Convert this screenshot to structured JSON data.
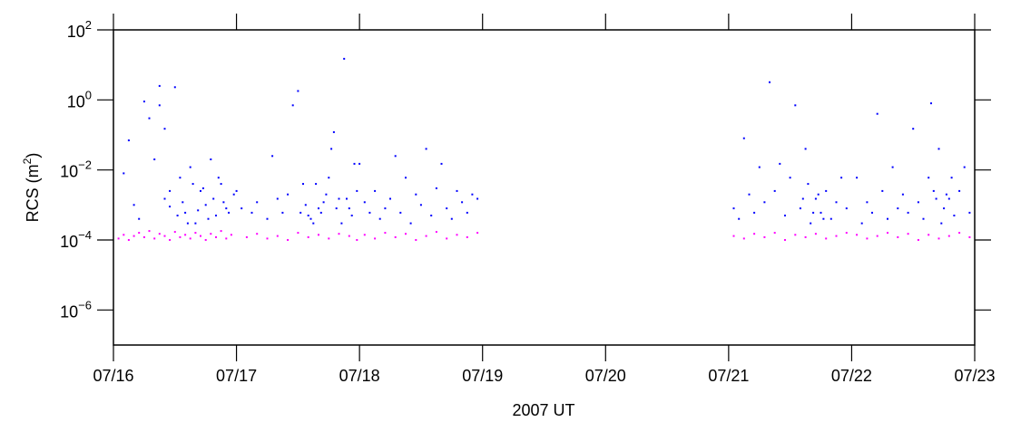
{
  "chart_data": {
    "type": "scatter",
    "title": "",
    "xlabel": "2007 UT",
    "ylabel": {
      "prefix": "RCS (m",
      "sup": "2",
      "suffix": ")"
    },
    "y_scale": "log",
    "ylim": [
      1e-07,
      100
    ],
    "xlim": [
      "07/16",
      "07/23"
    ],
    "x_ticks": [
      "07/16",
      "07/17",
      "07/18",
      "07/19",
      "07/20",
      "07/21",
      "07/22",
      "07/23"
    ],
    "y_ticks": [
      {
        "base": "10",
        "exp": "2"
      },
      {
        "base": "10",
        "exp": "0"
      },
      {
        "base": "10",
        "exp": "−2"
      },
      {
        "base": "10",
        "exp": "−4"
      },
      {
        "base": "10",
        "exp": "−6"
      }
    ],
    "grid": false,
    "colors": {
      "detections": "#0000ff",
      "detection_limit": "#ff00ff",
      "axes": "#000000"
    },
    "series": [
      {
        "key": "detections",
        "color": "#0000ff",
        "points": [
          [
            "07/16 02:00",
            0.008
          ],
          [
            "07/16 03:00",
            0.07
          ],
          [
            "07/16 04:00",
            0.001
          ],
          [
            "07/16 05:00",
            0.0004
          ],
          [
            "07/16 06:00",
            0.9
          ],
          [
            "07/16 07:00",
            0.3
          ],
          [
            "07/16 08:00",
            0.02
          ],
          [
            "07/16 09:00",
            2.5
          ],
          [
            "07/16 10:00",
            0.0015
          ],
          [
            "07/16 11:00",
            0.0009
          ],
          [
            "07/16 12:00",
            2.3
          ],
          [
            "07/16 13:00",
            0.006
          ],
          [
            "07/16 14:00",
            0.0006
          ],
          [
            "07/16 15:00",
            0.012
          ],
          [
            "07/16 16:00",
            0.0003
          ],
          [
            "07/16 17:00",
            0.0025
          ],
          [
            "07/16 18:00",
            0.001
          ],
          [
            "07/16 19:00",
            0.02
          ],
          [
            "07/16 20:00",
            0.0005
          ],
          [
            "07/16 21:00",
            0.004
          ],
          [
            "07/16 22:00",
            0.0008
          ],
          [
            "07/17 00:00",
            0.0025
          ],
          [
            "07/17 01:00",
            0.0008
          ],
          [
            "07/16 09:00",
            0.7
          ],
          [
            "07/16 10:00",
            0.15
          ],
          [
            "07/16 11:00",
            0.0025
          ],
          [
            "07/16 12:30",
            0.0005
          ],
          [
            "07/16 13:30",
            0.0012
          ],
          [
            "07/16 14:30",
            0.0003
          ],
          [
            "07/16 15:30",
            0.004
          ],
          [
            "07/16 16:30",
            0.0007
          ],
          [
            "07/16 17:30",
            0.003
          ],
          [
            "07/16 18:30",
            0.0004
          ],
          [
            "07/16 19:30",
            0.0015
          ],
          [
            "07/16 20:30",
            0.006
          ],
          [
            "07/16 21:30",
            0.0012
          ],
          [
            "07/16 22:30",
            0.0006
          ],
          [
            "07/16 23:30",
            0.002
          ],
          [
            "07/17 03:00",
            0.0006
          ],
          [
            "07/17 04:00",
            0.0012
          ],
          [
            "07/17 06:00",
            0.0004
          ],
          [
            "07/17 07:00",
            0.025
          ],
          [
            "07/17 08:00",
            0.0015
          ],
          [
            "07/17 09:00",
            0.0006
          ],
          [
            "07/17 10:00",
            0.002
          ],
          [
            "07/17 11:00",
            0.7
          ],
          [
            "07/17 12:00",
            1.8
          ],
          [
            "07/17 13:00",
            0.004
          ],
          [
            "07/17 14:00",
            0.0005
          ],
          [
            "07/17 15:00",
            0.0003
          ],
          [
            "07/17 16:00",
            0.0008
          ],
          [
            "07/17 17:00",
            0.0012
          ],
          [
            "07/17 18:00",
            0.006
          ],
          [
            "07/17 19:00",
            0.12
          ],
          [
            "07/17 20:00",
            0.0015
          ],
          [
            "07/17 21:00",
            15
          ],
          [
            "07/17 22:00",
            0.0008
          ],
          [
            "07/17 23:00",
            0.015
          ],
          [
            "07/17 12:30",
            0.0006
          ],
          [
            "07/17 13:30",
            0.001
          ],
          [
            "07/17 14:30",
            0.0004
          ],
          [
            "07/17 15:30",
            0.004
          ],
          [
            "07/17 16:30",
            0.0006
          ],
          [
            "07/17 17:30",
            0.002
          ],
          [
            "07/17 18:30",
            0.04
          ],
          [
            "07/17 19:30",
            0.0008
          ],
          [
            "07/17 20:30",
            0.0003
          ],
          [
            "07/17 21:30",
            0.0015
          ],
          [
            "07/17 22:30",
            0.0005
          ],
          [
            "07/17 23:30",
            0.0025
          ],
          [
            "07/18 00:00",
            0.015
          ],
          [
            "07/18 01:00",
            0.0012
          ],
          [
            "07/18 02:00",
            0.0006
          ],
          [
            "07/18 03:00",
            0.0025
          ],
          [
            "07/18 04:00",
            0.0004
          ],
          [
            "07/18 05:00",
            0.0008
          ],
          [
            "07/18 06:00",
            0.0015
          ],
          [
            "07/18 07:00",
            0.025
          ],
          [
            "07/18 08:00",
            0.0006
          ],
          [
            "07/18 09:00",
            0.006
          ],
          [
            "07/18 10:00",
            0.0003
          ],
          [
            "07/18 11:00",
            0.002
          ],
          [
            "07/18 12:00",
            0.001
          ],
          [
            "07/18 13:00",
            0.04
          ],
          [
            "07/18 14:00",
            0.0005
          ],
          [
            "07/18 15:00",
            0.003
          ],
          [
            "07/18 16:00",
            0.015
          ],
          [
            "07/18 17:00",
            0.0008
          ],
          [
            "07/18 18:00",
            0.0004
          ],
          [
            "07/18 19:00",
            0.0025
          ],
          [
            "07/18 20:00",
            0.0012
          ],
          [
            "07/18 21:00",
            0.0006
          ],
          [
            "07/18 22:00",
            0.002
          ],
          [
            "07/18 23:00",
            0.0015
          ],
          [
            "07/21 01:00",
            0.0008
          ],
          [
            "07/21 02:00",
            0.0004
          ],
          [
            "07/21 03:00",
            0.08
          ],
          [
            "07/21 04:00",
            0.002
          ],
          [
            "07/21 05:00",
            0.0006
          ],
          [
            "07/21 06:00",
            0.012
          ],
          [
            "07/21 07:00",
            0.0012
          ],
          [
            "07/21 08:00",
            3.2
          ],
          [
            "07/21 09:00",
            0.0025
          ],
          [
            "07/21 10:00",
            0.015
          ],
          [
            "07/21 11:00",
            0.0005
          ],
          [
            "07/21 12:00",
            0.006
          ],
          [
            "07/21 13:00",
            0.7
          ],
          [
            "07/21 14:00",
            0.0008
          ],
          [
            "07/21 15:00",
            0.04
          ],
          [
            "07/21 16:00",
            0.0003
          ],
          [
            "07/21 17:00",
            0.0015
          ],
          [
            "07/21 18:00",
            0.0006
          ],
          [
            "07/21 19:00",
            0.0025
          ],
          [
            "07/21 20:00",
            0.0004
          ],
          [
            "07/21 21:00",
            0.0012
          ],
          [
            "07/21 22:00",
            0.006
          ],
          [
            "07/21 23:00",
            0.0008
          ],
          [
            "07/21 14:30",
            0.0015
          ],
          [
            "07/21 15:30",
            0.004
          ],
          [
            "07/21 16:30",
            0.0006
          ],
          [
            "07/21 17:30",
            0.002
          ],
          [
            "07/21 18:30",
            0.0004
          ],
          [
            "07/22 01:00",
            0.006
          ],
          [
            "07/22 02:00",
            0.0003
          ],
          [
            "07/22 03:00",
            0.0012
          ],
          [
            "07/22 04:00",
            0.0006
          ],
          [
            "07/22 05:00",
            0.4
          ],
          [
            "07/22 06:00",
            0.0025
          ],
          [
            "07/22 07:00",
            0.0004
          ],
          [
            "07/22 08:00",
            0.012
          ],
          [
            "07/22 09:00",
            0.0008
          ],
          [
            "07/22 10:00",
            0.002
          ],
          [
            "07/22 11:00",
            0.0006
          ],
          [
            "07/22 12:00",
            0.15
          ],
          [
            "07/22 13:00",
            0.0012
          ],
          [
            "07/22 14:00",
            0.0004
          ],
          [
            "07/22 15:00",
            0.006
          ],
          [
            "07/22 16:00",
            0.0025
          ],
          [
            "07/22 17:00",
            0.04
          ],
          [
            "07/22 18:00",
            0.0008
          ],
          [
            "07/22 19:00",
            0.0015
          ],
          [
            "07/22 20:00",
            0.0005
          ],
          [
            "07/22 21:00",
            0.0025
          ],
          [
            "07/22 22:00",
            0.012
          ],
          [
            "07/22 23:00",
            0.0006
          ],
          [
            "07/22 15:30",
            0.8
          ],
          [
            "07/22 16:30",
            0.0015
          ],
          [
            "07/22 17:30",
            0.0003
          ],
          [
            "07/22 18:30",
            0.002
          ],
          [
            "07/22 19:30",
            0.006
          ]
        ]
      },
      {
        "key": "detection_limit",
        "color": "#ff00ff",
        "points": [
          [
            "07/16 01:00",
            0.00011
          ],
          [
            "07/16 02:00",
            0.00014
          ],
          [
            "07/16 03:00",
            0.0001
          ],
          [
            "07/16 04:00",
            0.00013
          ],
          [
            "07/16 05:00",
            0.00016
          ],
          [
            "07/16 06:00",
            0.00012
          ],
          [
            "07/16 07:00",
            0.00018
          ],
          [
            "07/16 08:00",
            0.00011
          ],
          [
            "07/16 09:00",
            0.00015
          ],
          [
            "07/16 10:00",
            0.00013
          ],
          [
            "07/16 11:00",
            0.0001
          ],
          [
            "07/16 12:00",
            0.00017
          ],
          [
            "07/16 13:00",
            0.00012
          ],
          [
            "07/16 14:00",
            0.00014
          ],
          [
            "07/16 15:00",
            0.00011
          ],
          [
            "07/16 16:00",
            0.00016
          ],
          [
            "07/16 17:00",
            0.00013
          ],
          [
            "07/16 18:00",
            0.0001
          ],
          [
            "07/16 19:00",
            0.00015
          ],
          [
            "07/16 20:00",
            0.00012
          ],
          [
            "07/16 21:00",
            0.00018
          ],
          [
            "07/16 22:00",
            0.00011
          ],
          [
            "07/16 23:00",
            0.00014
          ],
          [
            "07/17 02:00",
            0.00012
          ],
          [
            "07/17 04:00",
            0.00015
          ],
          [
            "07/17 06:00",
            0.00011
          ],
          [
            "07/17 08:00",
            0.00013
          ],
          [
            "07/17 10:00",
            0.0001
          ],
          [
            "07/17 12:00",
            0.00016
          ],
          [
            "07/17 14:00",
            0.00012
          ],
          [
            "07/17 16:00",
            0.00014
          ],
          [
            "07/17 18:00",
            0.00011
          ],
          [
            "07/17 20:00",
            0.00015
          ],
          [
            "07/17 22:00",
            0.00013
          ],
          [
            "07/17 23:30",
            0.0001
          ],
          [
            "07/18 01:00",
            0.00014
          ],
          [
            "07/18 03:00",
            0.00011
          ],
          [
            "07/18 05:00",
            0.00016
          ],
          [
            "07/18 07:00",
            0.00012
          ],
          [
            "07/18 09:00",
            0.00015
          ],
          [
            "07/18 11:00",
            0.0001
          ],
          [
            "07/18 13:00",
            0.00013
          ],
          [
            "07/18 15:00",
            0.00017
          ],
          [
            "07/18 17:00",
            0.00011
          ],
          [
            "07/18 19:00",
            0.00014
          ],
          [
            "07/18 21:00",
            0.00012
          ],
          [
            "07/18 23:00",
            0.00016
          ],
          [
            "07/21 01:00",
            0.00013
          ],
          [
            "07/21 03:00",
            0.00011
          ],
          [
            "07/21 05:00",
            0.00015
          ],
          [
            "07/21 07:00",
            0.00012
          ],
          [
            "07/21 09:00",
            0.00016
          ],
          [
            "07/21 11:00",
            0.0001
          ],
          [
            "07/21 13:00",
            0.00014
          ],
          [
            "07/21 15:00",
            0.00012
          ],
          [
            "07/21 17:00",
            0.00015
          ],
          [
            "07/21 19:00",
            0.00011
          ],
          [
            "07/21 21:00",
            0.00013
          ],
          [
            "07/21 23:00",
            0.00016
          ],
          [
            "07/22 01:00",
            0.00014
          ],
          [
            "07/22 03:00",
            0.00011
          ],
          [
            "07/22 05:00",
            0.00013
          ],
          [
            "07/22 07:00",
            0.00016
          ],
          [
            "07/22 09:00",
            0.00012
          ],
          [
            "07/22 11:00",
            0.00015
          ],
          [
            "07/22 13:00",
            0.0001
          ],
          [
            "07/22 15:00",
            0.00014
          ],
          [
            "07/22 17:00",
            0.00011
          ],
          [
            "07/22 19:00",
            0.00013
          ],
          [
            "07/22 21:00",
            0.00016
          ],
          [
            "07/22 23:00",
            0.00012
          ]
        ]
      }
    ]
  }
}
